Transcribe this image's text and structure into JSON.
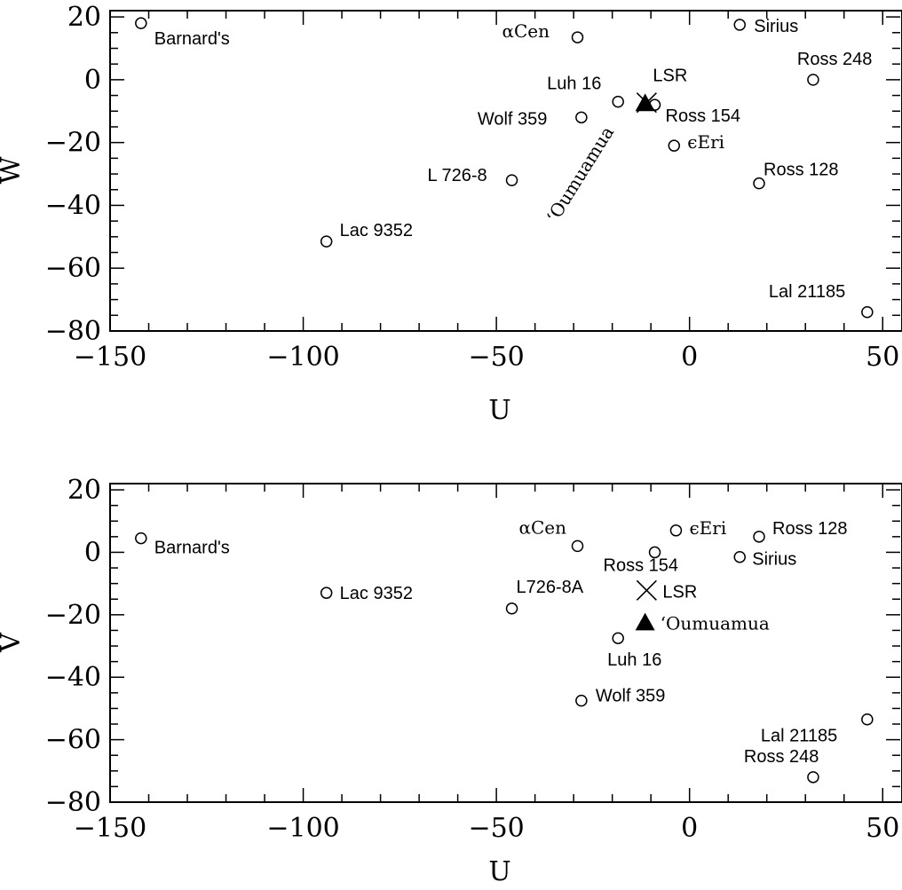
{
  "chart_data": [
    {
      "type": "scatter",
      "xlabel": "U",
      "ylabel": "W",
      "xlim": [
        -150,
        55
      ],
      "ylim": [
        -80,
        22
      ],
      "x_ticks": [
        "−150",
        "−100",
        "−50",
        "0",
        "50"
      ],
      "y_ticks": [
        "−80",
        "−60",
        "−40",
        "−20",
        "0",
        "20"
      ],
      "series": [
        {
          "marker": "open-circle",
          "points": [
            {
              "label": "Barnard's",
              "x": -142.0,
              "y": 18.0
            },
            {
              "label": "αCen",
              "x": -29.0,
              "y": 13.5
            },
            {
              "label": "Sirius",
              "x": 13.0,
              "y": 17.5
            },
            {
              "label": "Ross 248",
              "x": 32.0,
              "y": 0.0
            },
            {
              "label": "Luh 16",
              "x": -18.5,
              "y": -7.0
            },
            {
              "label": "Ross 154",
              "x": -9.0,
              "y": -8.0
            },
            {
              "label": "Wolf 359",
              "x": -28.0,
              "y": -12.0
            },
            {
              "label": "ϵEri",
              "x": -4.0,
              "y": -21.0
            },
            {
              "label": "L 726-8",
              "x": -46.0,
              "y": -32.0
            },
            {
              "label": "Ross 128",
              "x": 18.0,
              "y": -33.0
            },
            {
              "label": "Lac 9352",
              "x": -94.0,
              "y": -51.5
            },
            {
              "label": "Lal 21185",
              "x": 46.0,
              "y": -74.0
            }
          ]
        },
        {
          "marker": "cross",
          "points": [
            {
              "label": "LSR",
              "x": -11.1,
              "y": -7.3
            }
          ]
        },
        {
          "marker": "filled-triangle",
          "points": [
            {
              "label": "‘Oumuamua",
              "x": -11.5,
              "y": -7.5
            }
          ]
        }
      ]
    },
    {
      "type": "scatter",
      "xlabel": "U",
      "ylabel": "V",
      "xlim": [
        -150,
        55
      ],
      "ylim": [
        -80,
        22
      ],
      "x_ticks": [
        "−150",
        "−100",
        "−50",
        "0",
        "50"
      ],
      "y_ticks": [
        "−80",
        "−60",
        "−40",
        "−20",
        "0",
        "20"
      ],
      "series": [
        {
          "marker": "open-circle",
          "points": [
            {
              "label": "Barnard's",
              "x": -142.0,
              "y": 4.5
            },
            {
              "label": "αCen",
              "x": -29.0,
              "y": 2.0
            },
            {
              "label": "ϵEri",
              "x": -3.5,
              "y": 7.0
            },
            {
              "label": "Ross 128",
              "x": 18.0,
              "y": 5.0
            },
            {
              "label": "Ross 154",
              "x": -9.0,
              "y": 0.0
            },
            {
              "label": "Sirius",
              "x": 13.0,
              "y": -1.5
            },
            {
              "label": "Lac 9352",
              "x": -94.0,
              "y": -13.0
            },
            {
              "label": "L726-8A",
              "x": -46.0,
              "y": -18.0
            },
            {
              "label": "Luh 16",
              "x": -18.5,
              "y": -27.5
            },
            {
              "label": "Wolf 359",
              "x": -28.0,
              "y": -47.5
            },
            {
              "label": "Lal 21185",
              "x": 46.0,
              "y": -53.5
            },
            {
              "label": "Ross 248",
              "x": 32.0,
              "y": -72.0
            }
          ]
        },
        {
          "marker": "cross",
          "points": [
            {
              "label": "LSR",
              "x": -11.1,
              "y": -12.2
            }
          ]
        },
        {
          "marker": "filled-triangle",
          "points": [
            {
              "label": "‘Oumuamua",
              "x": -11.5,
              "y": -22.5
            }
          ]
        }
      ]
    }
  ]
}
